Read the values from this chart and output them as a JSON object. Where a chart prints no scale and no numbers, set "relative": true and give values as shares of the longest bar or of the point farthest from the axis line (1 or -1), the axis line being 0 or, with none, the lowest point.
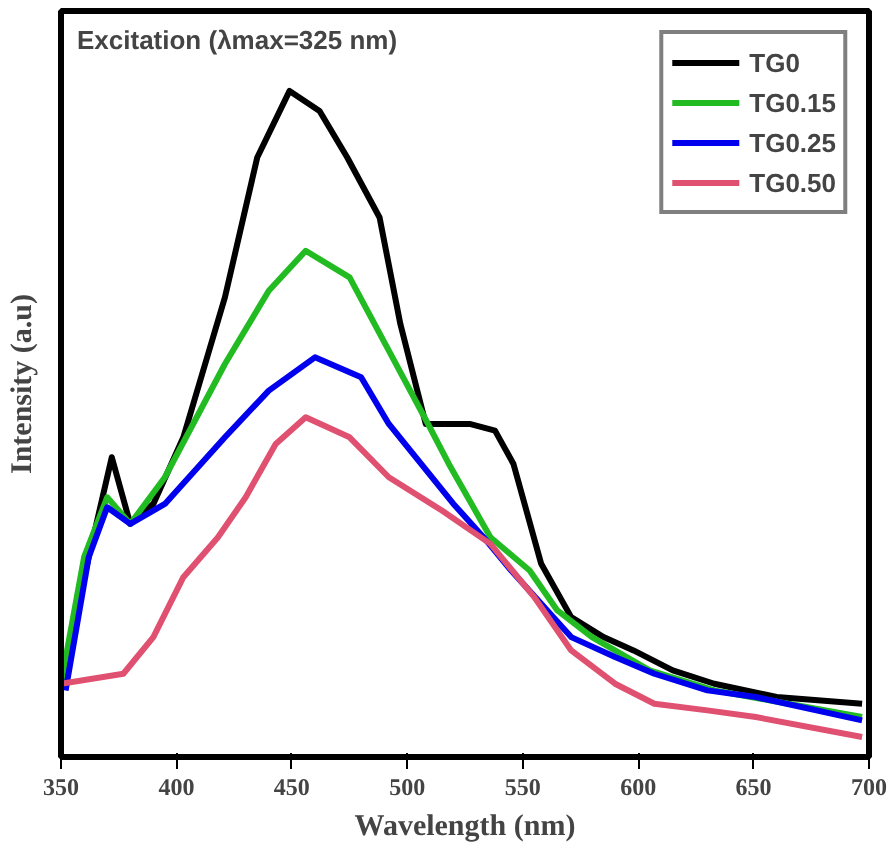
{
  "chart_data": {
    "type": "line",
    "relative": true,
    "xlabel": "Wavelength (nm)",
    "ylabel": "Intensity (a.u)",
    "annotations": [
      "Excitation (λmax=325 nm)"
    ],
    "xlim": [
      350,
      700
    ],
    "xticks": [
      350,
      400,
      450,
      500,
      550,
      600,
      650,
      700
    ],
    "legend": "top right",
    "grid": false,
    "line_style": "solid",
    "marker": "none",
    "series": [
      {
        "name": "TG0",
        "color": "#000000",
        "x": [
          350,
          362,
          372,
          380,
          390,
          403,
          421,
          435,
          449,
          462,
          474,
          488,
          497,
          508,
          520,
          527,
          538,
          546,
          558,
          571,
          585,
          598,
          615,
          633,
          660,
          697
        ],
        "values": [
          0.11,
          0.3,
          0.45,
          0.35,
          0.38,
          0.48,
          0.69,
          0.9,
          1.0,
          0.97,
          0.9,
          0.81,
          0.65,
          0.5,
          0.5,
          0.5,
          0.49,
          0.44,
          0.29,
          0.21,
          0.18,
          0.16,
          0.13,
          0.11,
          0.09,
          0.08
        ]
      },
      {
        "name": "TG0.15",
        "color": "#22bb22",
        "x": [
          350,
          360,
          370,
          380,
          395,
          421,
          440,
          456,
          475,
          492,
          509,
          518,
          536,
          553,
          565,
          580,
          605,
          633,
          665,
          697
        ],
        "values": [
          0.11,
          0.3,
          0.39,
          0.35,
          0.42,
          0.59,
          0.7,
          0.76,
          0.72,
          0.61,
          0.5,
          0.44,
          0.33,
          0.28,
          0.22,
          0.18,
          0.13,
          0.1,
          0.08,
          0.06
        ]
      },
      {
        "name": "TG0.25",
        "color": "#0000ee",
        "x": [
          352,
          362,
          370,
          380,
          395,
          421,
          440,
          460,
          480,
          492,
          506,
          520,
          533,
          545,
          558,
          571,
          590,
          607,
          630,
          651,
          697
        ],
        "values": [
          0.1,
          0.3,
          0.375,
          0.35,
          0.38,
          0.48,
          0.55,
          0.6,
          0.57,
          0.5,
          0.44,
          0.38,
          0.33,
          0.28,
          0.23,
          0.18,
          0.15,
          0.125,
          0.1,
          0.09,
          0.055
        ]
      },
      {
        "name": "TG0.50",
        "color": "#e05070",
        "x": [
          350,
          377,
          390,
          403,
          418,
          430,
          443,
          456,
          475,
          492,
          515,
          536,
          555,
          571,
          590,
          607,
          630,
          651,
          697
        ],
        "values": [
          0.11,
          0.125,
          0.18,
          0.27,
          0.33,
          0.39,
          0.47,
          0.51,
          0.48,
          0.42,
          0.37,
          0.32,
          0.24,
          0.16,
          0.11,
          0.08,
          0.07,
          0.06,
          0.03
        ]
      }
    ]
  }
}
